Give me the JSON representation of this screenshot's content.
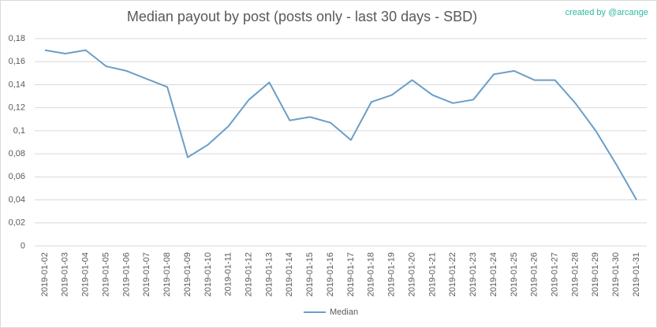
{
  "chart_data": {
    "type": "line",
    "title": "Median payout by post (posts only - last 30 days - SBD)",
    "annotation": "created by @arcange",
    "categories": [
      "2019-01-02",
      "2019-01-03",
      "2019-01-04",
      "2019-01-05",
      "2019-01-06",
      "2019-01-07",
      "2019-01-08",
      "2019-01-09",
      "2019-01-10",
      "2019-01-11",
      "2019-01-12",
      "2019-01-13",
      "2019-01-14",
      "2019-01-15",
      "2019-01-16",
      "2019-01-17",
      "2019-01-18",
      "2019-01-19",
      "2019-01-20",
      "2019-01-21",
      "2019-01-22",
      "2019-01-23",
      "2019-01-24",
      "2019-01-25",
      "2019-01-26",
      "2019-01-27",
      "2019-01-28",
      "2019-01-29",
      "2019-01-30",
      "2019-01-31"
    ],
    "series": [
      {
        "name": "Median",
        "color": "#6a9ec8",
        "values": [
          0.17,
          0.167,
          0.17,
          0.156,
          0.152,
          0.145,
          0.138,
          0.077,
          0.088,
          0.104,
          0.127,
          0.142,
          0.109,
          0.112,
          0.107,
          0.092,
          0.125,
          0.131,
          0.144,
          0.131,
          0.124,
          0.127,
          0.149,
          0.152,
          0.144,
          0.144,
          0.124,
          0.1,
          0.071,
          0.04
        ]
      }
    ],
    "ylim": [
      0,
      0.18
    ],
    "yticks": [
      0,
      {
        "value": 0.02,
        "label": "0,02"
      },
      {
        "value": 0.04,
        "label": "0,04"
      },
      {
        "value": 0.06,
        "label": "0,06"
      },
      {
        "value": 0.08,
        "label": "0,08"
      },
      {
        "value": 0.1,
        "label": "0,1"
      },
      {
        "value": 0.12,
        "label": "0,12"
      },
      {
        "value": 0.14,
        "label": "0,14"
      },
      {
        "value": 0.16,
        "label": "0,16"
      },
      {
        "value": 0.18,
        "label": "0,18"
      }
    ],
    "grid": true,
    "legend": "bottom"
  }
}
